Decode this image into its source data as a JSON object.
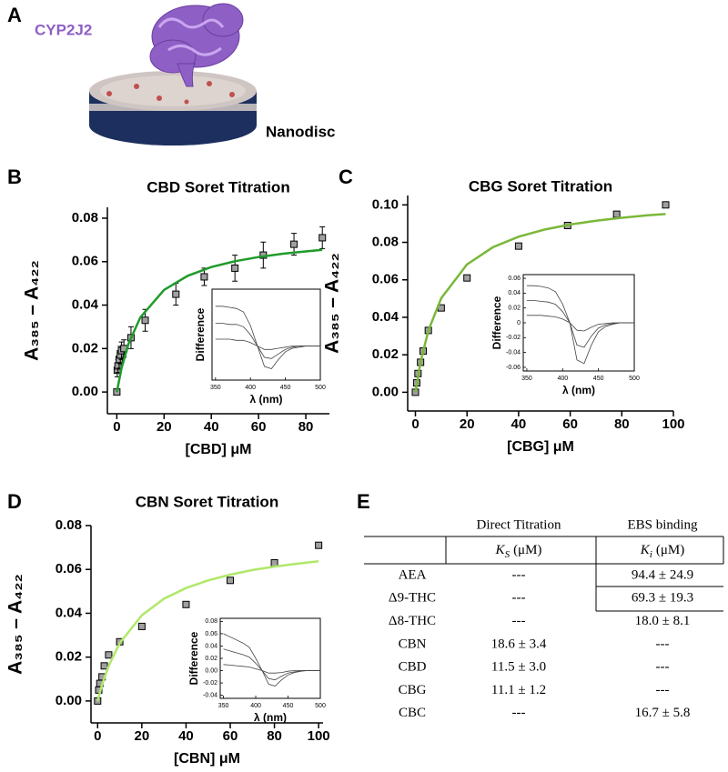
{
  "panels": [
    "A",
    "B",
    "C",
    "D",
    "E"
  ],
  "structure": {
    "protein": "CYP2J2",
    "membrane": "Nanodisc"
  },
  "chart_data": [
    {
      "type": "scatter",
      "title": "CBD Soret Titration",
      "xlabel": "[CBD] μM",
      "ylabel": "A₃₈₅ – A₄₂₂",
      "xlim": [
        -4,
        90
      ],
      "xticks": [
        0,
        20,
        40,
        60,
        80
      ],
      "ylim": [
        -0.01,
        0.085
      ],
      "yticks": [
        {
          "value": 0,
          "label": "0.00"
        },
        0.02,
        0.04,
        0.06,
        0.08
      ],
      "series": [
        {
          "mode": "markers",
          "color": "#a0a0a0",
          "x": [
            0,
            0.2,
            0.5,
            1,
            1.5,
            2,
            3,
            6,
            12,
            25,
            37,
            50,
            62,
            75,
            87
          ],
          "values": [
            0.0,
            0.01,
            0.012,
            0.015,
            0.017,
            0.019,
            0.02,
            0.025,
            0.033,
            0.045,
            0.053,
            0.057,
            0.063,
            0.068,
            0.071
          ],
          "errors": [
            0,
            0.003,
            0.003,
            0.004,
            0.004,
            0.004,
            0.004,
            0.005,
            0.005,
            0.005,
            0.004,
            0.006,
            0.006,
            0.005,
            0.005
          ]
        },
        {
          "mode": "lines",
          "color": "#1f9b2a",
          "x": [
            0,
            2,
            5,
            10,
            20,
            30,
            40,
            50,
            60,
            70,
            80,
            87
          ],
          "values": [
            0,
            0.011,
            0.0224,
            0.0344,
            0.047,
            0.0535,
            0.0575,
            0.0602,
            0.0621,
            0.0636,
            0.0647,
            0.0654
          ]
        }
      ]
    },
    {
      "type": "line",
      "xlabel": "λ (nm)",
      "ylabel": "Difference",
      "xlim": [
        345,
        500
      ],
      "xticks": [
        350,
        400,
        450,
        500
      ],
      "ylim": [
        -0.03,
        0.05
      ],
      "x": [
        350,
        360,
        370,
        380,
        390,
        400,
        410,
        420,
        430,
        440,
        450,
        460,
        470,
        480,
        490,
        500
      ],
      "series": [
        {
          "color": "#444444",
          "values": [
            0.035,
            0.035,
            0.034,
            0.033,
            0.03,
            0.018,
            0.0,
            -0.018,
            -0.02,
            -0.012,
            -0.005,
            -0.002,
            -0.001,
            0,
            0,
            0
          ]
        },
        {
          "color": "#444444",
          "values": [
            0.02,
            0.02,
            0.019,
            0.019,
            0.017,
            0.01,
            0,
            -0.01,
            -0.011,
            -0.007,
            -0.003,
            -0.001,
            0,
            0,
            0,
            0
          ]
        },
        {
          "color": "#444444",
          "values": [
            0.006,
            0.006,
            0.006,
            0.005,
            0.005,
            0.003,
            0,
            -0.003,
            -0.003,
            -0.002,
            -0.001,
            0,
            0,
            0,
            0,
            0
          ]
        }
      ]
    },
    {
      "type": "scatter",
      "title": "CBG Soret Titration",
      "xlabel": "[CBG] μM",
      "ylabel": "A₃₈₅ – A₄₂₂",
      "xlim": [
        -3,
        100
      ],
      "xticks": [
        0,
        20,
        40,
        60,
        80,
        100
      ],
      "ylim": [
        -0.01,
        0.105
      ],
      "yticks": [
        {
          "value": 0,
          "label": "0.00"
        },
        0.02,
        0.04,
        0.06,
        0.08,
        {
          "value": 0.1,
          "label": "0.10"
        }
      ],
      "series": [
        {
          "mode": "markers",
          "color": "#a0a0a0",
          "x": [
            0,
            0.5,
            1,
            2,
            3,
            5,
            10,
            20,
            40,
            59,
            78,
            97
          ],
          "values": [
            0.0,
            0.005,
            0.01,
            0.016,
            0.022,
            0.033,
            0.045,
            0.061,
            0.078,
            0.089,
            0.095,
            0.1
          ]
        },
        {
          "mode": "lines",
          "color": "#7ab83a",
          "x": [
            0,
            2,
            5,
            10,
            20,
            30,
            40,
            50,
            60,
            70,
            80,
            90,
            97
          ],
          "values": [
            0,
            0.0162,
            0.0329,
            0.0502,
            0.0682,
            0.0774,
            0.083,
            0.0868,
            0.0895,
            0.0915,
            0.0931,
            0.0944,
            0.0951
          ]
        }
      ]
    },
    {
      "type": "line",
      "xlabel": "λ (nm)",
      "ylabel": "Difference",
      "xlim": [
        345,
        500
      ],
      "xticks": [
        350,
        400,
        450,
        500
      ],
      "ylim": [
        -0.065,
        0.065
      ],
      "yticks": [
        0.06,
        0.04,
        0.02,
        0,
        -0.02,
        -0.04,
        -0.06
      ],
      "x": [
        350,
        360,
        370,
        380,
        390,
        400,
        410,
        420,
        430,
        440,
        450,
        460,
        470,
        480,
        490,
        500
      ],
      "series": [
        {
          "color": "#444444",
          "values": [
            0.05,
            0.05,
            0.049,
            0.047,
            0.042,
            0.025,
            0.0,
            -0.05,
            -0.055,
            -0.03,
            -0.012,
            -0.005,
            -0.002,
            0,
            0,
            0
          ]
        },
        {
          "color": "#444444",
          "values": [
            0.03,
            0.03,
            0.029,
            0.028,
            0.025,
            0.015,
            0.0,
            -0.03,
            -0.033,
            -0.018,
            -0.007,
            -0.003,
            -0.001,
            0,
            0,
            0
          ]
        },
        {
          "color": "#444444",
          "values": [
            0.01,
            0.01,
            0.01,
            0.009,
            0.008,
            0.005,
            0.0,
            -0.01,
            -0.011,
            -0.006,
            -0.002,
            -0.001,
            0,
            0,
            0,
            0
          ]
        }
      ]
    },
    {
      "type": "scatter",
      "title": "CBN Soret Titration",
      "xlabel": "[CBN] μM",
      "ylabel": "A₃₈₅ – A₄₂₂",
      "xlim": [
        -3,
        102
      ],
      "xticks": [
        0,
        20,
        40,
        60,
        80,
        100
      ],
      "ylim": [
        -0.01,
        0.08
      ],
      "yticks": [
        {
          "value": 0,
          "label": "0.00"
        },
        0.02,
        0.04,
        0.06,
        0.08
      ],
      "series": [
        {
          "mode": "markers",
          "color": "#a0a0a0",
          "x": [
            0,
            0.5,
            1,
            2,
            3,
            5,
            10,
            20,
            40,
            60,
            80,
            100
          ],
          "values": [
            0.0,
            0.005,
            0.008,
            0.011,
            0.016,
            0.021,
            0.027,
            0.034,
            0.044,
            0.055,
            0.063,
            0.071
          ]
        },
        {
          "mode": "lines",
          "color": "#b0e86a",
          "x": [
            0,
            2,
            5,
            10,
            20,
            30,
            40,
            50,
            60,
            70,
            80,
            90,
            100
          ],
          "values": [
            0,
            0.0073,
            0.016,
            0.0264,
            0.0391,
            0.0466,
            0.0515,
            0.055,
            0.0576,
            0.0597,
            0.0613,
            0.0626,
            0.0637
          ]
        }
      ]
    },
    {
      "type": "line",
      "xlabel": "λ (nm)",
      "ylabel": "Difference",
      "xlim": [
        345,
        500
      ],
      "xticks": [
        350,
        400,
        450,
        500
      ],
      "ylim": [
        -0.045,
        0.085
      ],
      "yticks": [
        0.08,
        0.06,
        0.04,
        0.02,
        {
          "value": 0,
          "label": "0.00"
        },
        -0.02,
        -0.04
      ],
      "x": [
        350,
        360,
        370,
        380,
        390,
        400,
        410,
        420,
        430,
        440,
        450,
        460,
        470,
        480,
        490,
        500
      ],
      "series": [
        {
          "color": "#444444",
          "values": [
            0.06,
            0.055,
            0.05,
            0.045,
            0.038,
            0.02,
            0.0,
            -0.022,
            -0.025,
            -0.015,
            -0.007,
            -0.003,
            -0.001,
            0,
            0,
            0
          ]
        },
        {
          "color": "#444444",
          "values": [
            0.035,
            0.032,
            0.029,
            0.026,
            0.022,
            0.012,
            0,
            -0.013,
            -0.015,
            -0.009,
            -0.004,
            -0.002,
            0,
            0,
            0,
            0
          ]
        },
        {
          "color": "#444444",
          "values": [
            0.01,
            0.009,
            0.008,
            0.007,
            0.006,
            0.003,
            0,
            -0.004,
            -0.004,
            -0.003,
            -0.001,
            0,
            0,
            0,
            0,
            0
          ]
        }
      ]
    }
  ],
  "table": {
    "headers": [
      "Direct Titration",
      "EBS binding"
    ],
    "subheaders": [
      {
        "symbol": "K",
        "sub": "S",
        "unit": "(μM)"
      },
      {
        "symbol": "K",
        "sub": "i",
        "unit": "(μM)"
      }
    ],
    "rows": [
      [
        "AEA",
        "---",
        "94.4 ± 24.9"
      ],
      [
        "Δ9-THC",
        "---",
        "69.3 ± 19.3"
      ],
      [
        "Δ8-THC",
        "---",
        "18.0 ± 8.1"
      ],
      [
        "CBN",
        "18.6 ± 3.4",
        "---"
      ],
      [
        "CBD",
        "11.5 ± 3.0",
        "---"
      ],
      [
        "CBG",
        "11.1 ± 1.2",
        "---"
      ],
      [
        "CBC",
        "---",
        "16.7 ± 5.8"
      ]
    ]
  }
}
